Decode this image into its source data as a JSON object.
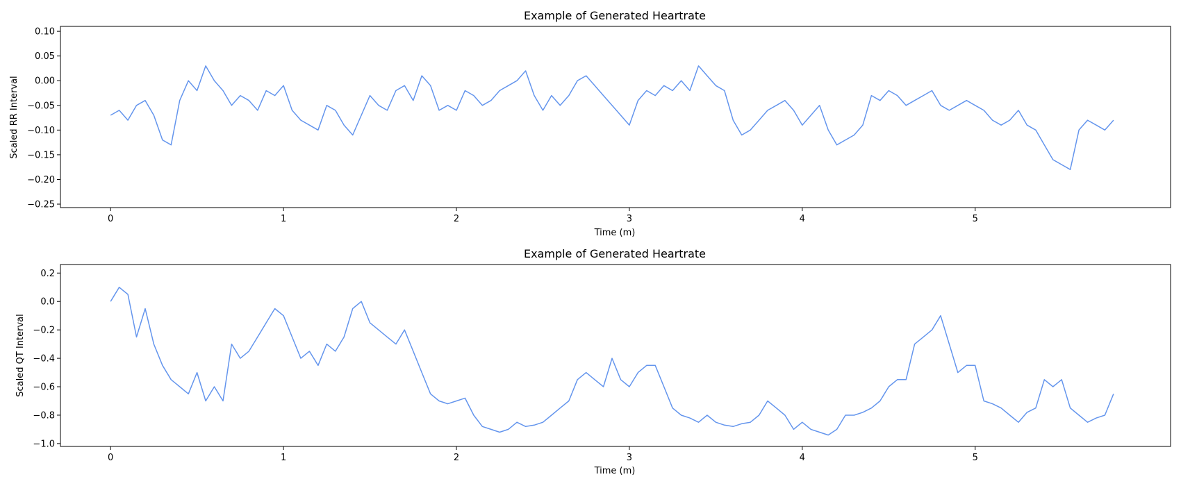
{
  "chart_data": [
    {
      "type": "line",
      "title": "Example of Generated Heartrate",
      "xlabel": "Time (m)",
      "ylabel": "Scaled RR Interval",
      "xlim": [
        -0.29,
        6.13
      ],
      "ylim": [
        -0.257,
        0.11
      ],
      "xticks": [
        0,
        1,
        2,
        3,
        4,
        5
      ],
      "xtick_labels": [
        "0",
        "1",
        "2",
        "3",
        "4",
        "5"
      ],
      "yticks": [
        0.1,
        0.05,
        0.0,
        -0.05,
        -0.1,
        -0.15,
        -0.2,
        -0.25
      ],
      "ytick_labels": [
        "0.10",
        "0.05",
        "0.00",
        "−0.05",
        "−0.10",
        "−0.15",
        "−0.20",
        "−0.25"
      ],
      "grid": false,
      "color": "#6495ED",
      "series": [
        {
          "x": [
            0,
            0.05,
            0.1,
            0.15,
            0.2,
            0.25,
            0.3,
            0.35,
            0.4,
            0.45,
            0.5,
            0.55,
            0.6,
            0.65,
            0.7,
            0.75,
            0.8,
            0.85,
            0.9,
            0.95,
            1.0,
            1.05,
            1.1,
            1.15,
            1.2,
            1.25,
            1.3,
            1.35,
            1.4,
            1.45,
            1.5,
            1.55,
            1.6,
            1.65,
            1.7,
            1.75,
            1.8,
            1.85,
            1.9,
            1.95,
            2.0,
            2.05,
            2.1,
            2.15,
            2.2,
            2.25,
            2.3,
            2.35,
            2.4,
            2.45,
            2.5,
            2.55,
            2.6,
            2.65,
            2.7,
            2.75,
            2.8,
            2.85,
            2.9,
            2.95,
            3.0,
            3.05,
            3.1,
            3.15,
            3.2,
            3.25,
            3.3,
            3.35,
            3.4,
            3.45,
            3.5,
            3.55,
            3.6,
            3.65,
            3.7,
            3.75,
            3.8,
            3.85,
            3.9,
            3.95,
            4.0,
            4.05,
            4.1,
            4.15,
            4.2,
            4.25,
            4.3,
            4.35,
            4.4,
            4.45,
            4.5,
            4.55,
            4.6,
            4.65,
            4.7,
            4.75,
            4.8,
            4.85,
            4.9,
            4.95,
            5.0,
            5.05,
            5.1,
            5.15,
            5.2,
            5.25,
            5.3,
            5.35,
            5.4,
            5.45,
            5.5,
            5.55,
            5.6,
            5.65,
            5.7,
            5.75,
            5.8
          ],
          "y": [
            -0.07,
            -0.06,
            -0.08,
            -0.05,
            -0.04,
            -0.07,
            -0.12,
            -0.13,
            -0.04,
            0.0,
            -0.02,
            0.03,
            0.0,
            -0.02,
            -0.05,
            -0.03,
            -0.04,
            -0.06,
            -0.02,
            -0.03,
            -0.01,
            -0.06,
            -0.08,
            -0.09,
            -0.1,
            -0.05,
            -0.06,
            -0.09,
            -0.11,
            -0.07,
            -0.03,
            -0.05,
            -0.06,
            -0.02,
            -0.01,
            -0.04,
            0.01,
            -0.01,
            -0.06,
            -0.05,
            -0.06,
            -0.02,
            -0.03,
            -0.05,
            -0.04,
            -0.02,
            -0.01,
            0.0,
            0.02,
            -0.03,
            -0.06,
            -0.03,
            -0.05,
            -0.03,
            0.0,
            0.01,
            -0.01,
            -0.03,
            -0.05,
            -0.07,
            -0.09,
            -0.04,
            -0.02,
            -0.03,
            -0.01,
            -0.02,
            0.0,
            -0.02,
            0.03,
            0.01,
            -0.01,
            -0.02,
            -0.08,
            -0.11,
            -0.1,
            -0.08,
            -0.06,
            -0.05,
            -0.04,
            -0.06,
            -0.09,
            -0.07,
            -0.05,
            -0.1,
            -0.13,
            -0.12,
            -0.11,
            -0.09,
            -0.03,
            -0.04,
            -0.02,
            -0.03,
            -0.05,
            -0.04,
            -0.03,
            -0.02,
            -0.05,
            -0.06,
            -0.05,
            -0.04,
            -0.05,
            -0.06,
            -0.08,
            -0.09,
            -0.08,
            -0.06,
            -0.09,
            -0.1,
            -0.13,
            -0.16,
            -0.17,
            -0.18,
            -0.1,
            -0.08,
            -0.09,
            -0.1,
            -0.08
          ]
        }
      ]
    },
    {
      "type": "line",
      "title": "Example of Generated Heartrate",
      "xlabel": "Time (m)",
      "ylabel": "Scaled QT Interval",
      "xlim": [
        -0.29,
        6.13
      ],
      "ylim": [
        -1.02,
        0.26
      ],
      "xticks": [
        0,
        1,
        2,
        3,
        4,
        5
      ],
      "xtick_labels": [
        "0",
        "1",
        "2",
        "3",
        "4",
        "5"
      ],
      "yticks": [
        0.2,
        0.0,
        -0.2,
        -0.4,
        -0.6,
        -0.8,
        -1.0
      ],
      "ytick_labels": [
        "0.2",
        "0.0",
        "−0.2",
        "−0.4",
        "−0.6",
        "−0.8",
        "−1.0"
      ],
      "grid": false,
      "color": "#6495ED",
      "series": [
        {
          "x": [
            0,
            0.05,
            0.1,
            0.15,
            0.2,
            0.25,
            0.3,
            0.35,
            0.4,
            0.45,
            0.5,
            0.55,
            0.6,
            0.65,
            0.7,
            0.75,
            0.8,
            0.85,
            0.9,
            0.95,
            1.0,
            1.05,
            1.1,
            1.15,
            1.2,
            1.25,
            1.3,
            1.35,
            1.4,
            1.45,
            1.5,
            1.55,
            1.6,
            1.65,
            1.7,
            1.75,
            1.8,
            1.85,
            1.9,
            1.95,
            2.0,
            2.05,
            2.1,
            2.15,
            2.2,
            2.25,
            2.3,
            2.35,
            2.4,
            2.45,
            2.5,
            2.55,
            2.6,
            2.65,
            2.7,
            2.75,
            2.8,
            2.85,
            2.9,
            2.95,
            3.0,
            3.05,
            3.1,
            3.15,
            3.2,
            3.25,
            3.3,
            3.35,
            3.4,
            3.45,
            3.5,
            3.55,
            3.6,
            3.65,
            3.7,
            3.75,
            3.8,
            3.85,
            3.9,
            3.95,
            4.0,
            4.05,
            4.1,
            4.15,
            4.2,
            4.25,
            4.3,
            4.35,
            4.4,
            4.45,
            4.5,
            4.55,
            4.6,
            4.65,
            4.7,
            4.75,
            4.8,
            4.85,
            4.9,
            4.95,
            5.0,
            5.05,
            5.1,
            5.15,
            5.2,
            5.25,
            5.3,
            5.35,
            5.4,
            5.45,
            5.5,
            5.55,
            5.6,
            5.65,
            5.7,
            5.75,
            5.8
          ],
          "y": [
            0.0,
            0.1,
            0.05,
            -0.25,
            -0.05,
            -0.3,
            -0.45,
            -0.55,
            -0.6,
            -0.65,
            -0.5,
            -0.7,
            -0.6,
            -0.7,
            -0.3,
            -0.4,
            -0.35,
            -0.25,
            -0.15,
            -0.05,
            -0.1,
            -0.25,
            -0.4,
            -0.35,
            -0.45,
            -0.3,
            -0.35,
            -0.25,
            -0.05,
            0.0,
            -0.15,
            -0.2,
            -0.25,
            -0.3,
            -0.2,
            -0.35,
            -0.5,
            -0.65,
            -0.7,
            -0.72,
            -0.7,
            -0.68,
            -0.8,
            -0.88,
            -0.9,
            -0.92,
            -0.9,
            -0.85,
            -0.88,
            -0.87,
            -0.85,
            -0.8,
            -0.75,
            -0.7,
            -0.55,
            -0.5,
            -0.55,
            -0.6,
            -0.4,
            -0.55,
            -0.6,
            -0.5,
            -0.45,
            -0.45,
            -0.6,
            -0.75,
            -0.8,
            -0.82,
            -0.85,
            -0.8,
            -0.85,
            -0.87,
            -0.88,
            -0.86,
            -0.85,
            -0.8,
            -0.7,
            -0.75,
            -0.8,
            -0.9,
            -0.85,
            -0.9,
            -0.92,
            -0.94,
            -0.9,
            -0.8,
            -0.8,
            -0.78,
            -0.75,
            -0.7,
            -0.6,
            -0.55,
            -0.55,
            -0.3,
            -0.25,
            -0.2,
            -0.1,
            -0.3,
            -0.5,
            -0.45,
            -0.45,
            -0.7,
            -0.72,
            -0.75,
            -0.8,
            -0.85,
            -0.78,
            -0.75,
            -0.55,
            -0.6,
            -0.55,
            -0.75,
            -0.8,
            -0.85,
            -0.82,
            -0.8,
            -0.65
          ]
        }
      ]
    }
  ]
}
